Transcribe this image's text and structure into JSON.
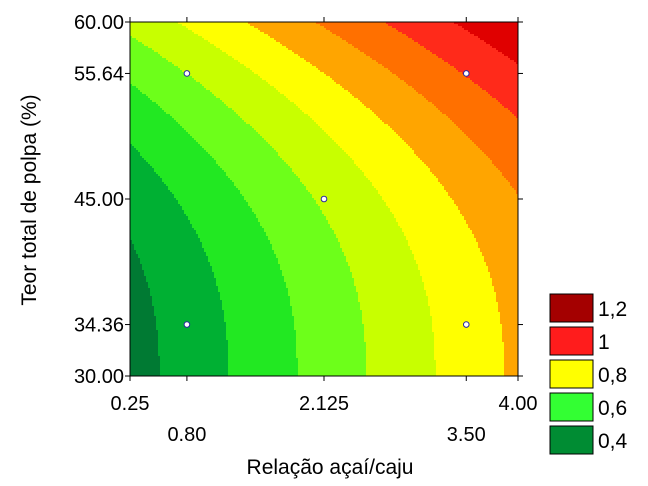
{
  "chart_data": {
    "type": "contour",
    "xlabel": "Relação açaí/caju",
    "ylabel": "Teor total de polpa (%)",
    "xlim": [
      0.25,
      4.0
    ],
    "ylim": [
      30.0,
      60.0
    ],
    "x_ticks_top": [
      "0.25",
      "2.125",
      "4.00"
    ],
    "x_ticks_bottom": [
      "0.80",
      "3.50"
    ],
    "y_ticks": [
      "60.00",
      "55.64",
      "45.00",
      "34.36",
      "30.00"
    ],
    "design_points": [
      {
        "x": 0.8,
        "y": 55.64
      },
      {
        "x": 3.5,
        "y": 55.64
      },
      {
        "x": 2.125,
        "y": 45.0
      },
      {
        "x": 0.8,
        "y": 34.36
      },
      {
        "x": 3.5,
        "y": 34.36
      }
    ],
    "contour_levels": [
      0.4,
      0.5,
      0.6,
      0.7,
      0.8,
      0.9,
      1.0,
      1.1,
      1.2
    ],
    "legend": [
      {
        "label": "1,2",
        "color": "#a40000"
      },
      {
        "label": "1",
        "color": "#ff1c1c"
      },
      {
        "label": "0,8",
        "color": "#ffff00"
      },
      {
        "label": "0,6",
        "color": "#33ff33"
      },
      {
        "label": "0,4",
        "color": "#008c33"
      }
    ],
    "band_colors": [
      "#007a33",
      "#00b033",
      "#22e822",
      "#6dff1a",
      "#c8ff00",
      "#ffff00",
      "#ffa500",
      "#ff7000",
      "#ff2a1a",
      "#e00000",
      "#a40000"
    ]
  }
}
